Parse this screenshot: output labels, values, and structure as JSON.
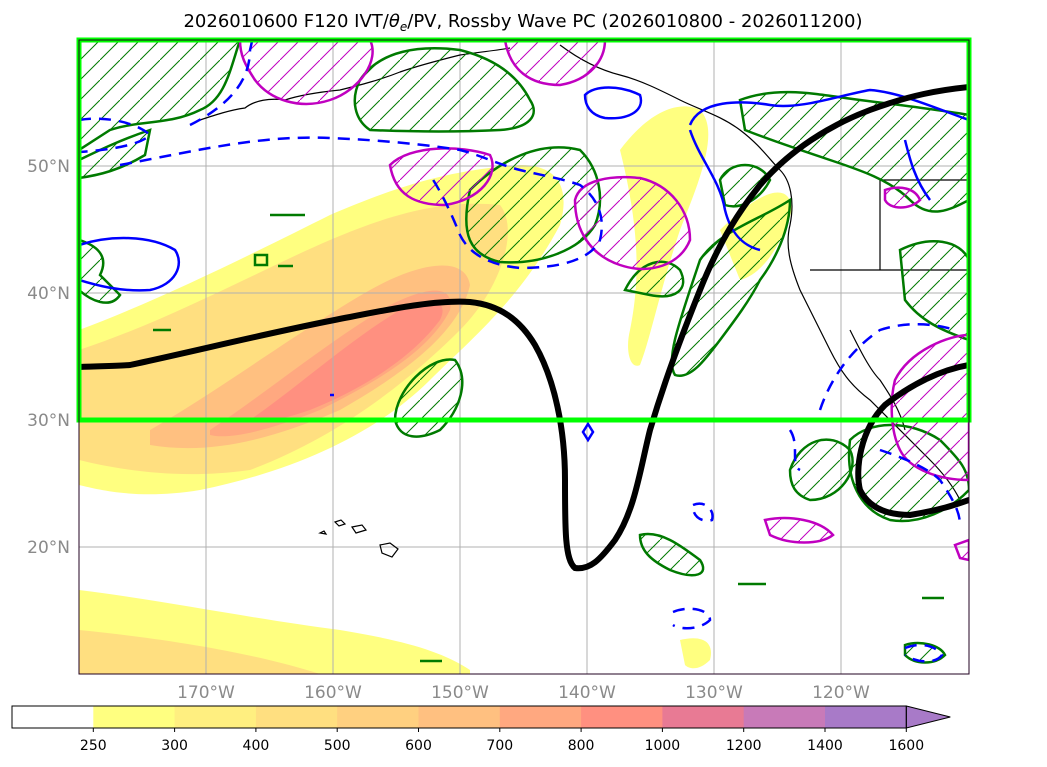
{
  "title_prefix": "2026010600 F120 IVT/",
  "title_theta": "θ",
  "title_sub": "e",
  "title_suffix": "/PV, Rossby Wave PC (2026010800 - 2026011200)",
  "map": {
    "lon_min": -180,
    "lon_max": -110,
    "lat_min": 10,
    "lat_max": 60,
    "lat_ticks": [
      20,
      30,
      40,
      50
    ],
    "lat_tick_labels": [
      "20°N",
      "30°N",
      "40°N",
      "50°N"
    ],
    "lon_ticks": [
      -170,
      -160,
      -150,
      -140,
      -130,
      -120
    ],
    "lon_tick_labels": [
      "170°W",
      "160°W",
      "150°W",
      "140°W",
      "130°W",
      "120°W"
    ],
    "highlight_box": {
      "lon": [
        -180,
        -110
      ],
      "lat": [
        30,
        60
      ],
      "color": "#00ff00"
    }
  },
  "colorbar": {
    "levels": [
      250,
      300,
      400,
      500,
      600,
      700,
      800,
      1000,
      1200,
      1400,
      1600
    ],
    "labels": [
      "250",
      "300",
      "400",
      "500",
      "600",
      "700",
      "800",
      "1000",
      "1200",
      "1400",
      "1600"
    ],
    "colors": [
      "#ffffff",
      "#ffff80",
      "#ffef80",
      "#ffdf80",
      "#ffd080",
      "#ffc080",
      "#ffa880",
      "#ff9080",
      "#e87a94",
      "#c87ab8",
      "#a87ac8"
    ],
    "extend": "max"
  },
  "chart_data": {
    "type": "map",
    "fields": {
      "ivt_filled_levels": [
        250,
        300,
        400,
        500,
        600,
        700,
        800,
        1000,
        1200,
        1400,
        1600
      ],
      "rossby_wave_pc_contour": {
        "color": "#000000"
      },
      "theta_e_contours": {
        "colors": [
          "#0000ff"
        ]
      },
      "pv_contours": {
        "colors": [
          "#008000",
          "#c000c0"
        ]
      }
    }
  },
  "colors": {
    "pc_line": "#000000",
    "coast": "#000000",
    "grid": "#b0b0b0",
    "blue": "#0000ff",
    "green": "#007a00",
    "magenta": "#c000c0"
  }
}
